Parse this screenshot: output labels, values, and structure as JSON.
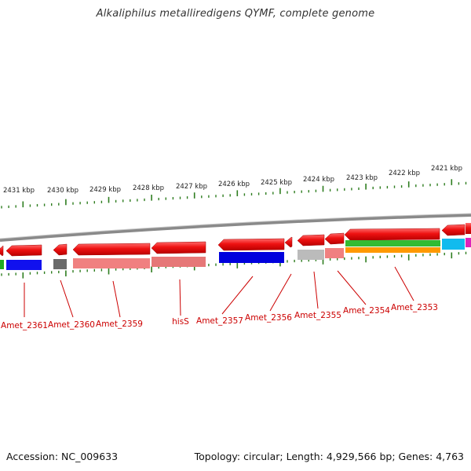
{
  "title": "Alkaliphilus metalliredigens QYMF, complete genome",
  "footer": {
    "accession": "Accession: NC_009633",
    "summary": "Topology: circular; Length: 4,929,566 bp; Genes: 4,763"
  },
  "colors": {
    "tick": "#2e7d1f",
    "label": "#cc0000",
    "backbone": "#8a8a8a",
    "forward_gene": "#ee1111",
    "scale_text": "#222222"
  },
  "scale": {
    "unit": "kbp",
    "labels": [
      "2431 kbp",
      "2430 kbp",
      "2429 kbp",
      "2428 kbp",
      "2427 kbp",
      "2426 kbp",
      "2425 kbp",
      "2424 kbp",
      "2423 kbp",
      "2422 kbp",
      "2421 kbp"
    ]
  },
  "genes": [
    {
      "label": "Amet_2361",
      "color": "#ee1111",
      "subtrack": "#1111ee"
    },
    {
      "label": "Amet_2360",
      "color": "#ee1111",
      "subtrack": "#666666"
    },
    {
      "label": "Amet_2359",
      "color": "#ee1111",
      "subtrack": "#f08080"
    },
    {
      "label": "hisS",
      "color": "#ee1111",
      "subtrack": "#f08080"
    },
    {
      "label": "Amet_2357",
      "color": "#ee1111",
      "subtrack": "#0000dd"
    },
    {
      "label": "Amet_2356",
      "color": "#ee1111",
      "subtrack": ""
    },
    {
      "label": "Amet_2355",
      "color": "#ee1111",
      "subtrack": "#bbbbbb"
    },
    {
      "label": "Amet_2354",
      "color": "#ee1111",
      "subtrack": "#f08080"
    },
    {
      "label": "Amet_2353",
      "color": "#ee1111",
      "subtrack": "#33bb33"
    }
  ]
}
